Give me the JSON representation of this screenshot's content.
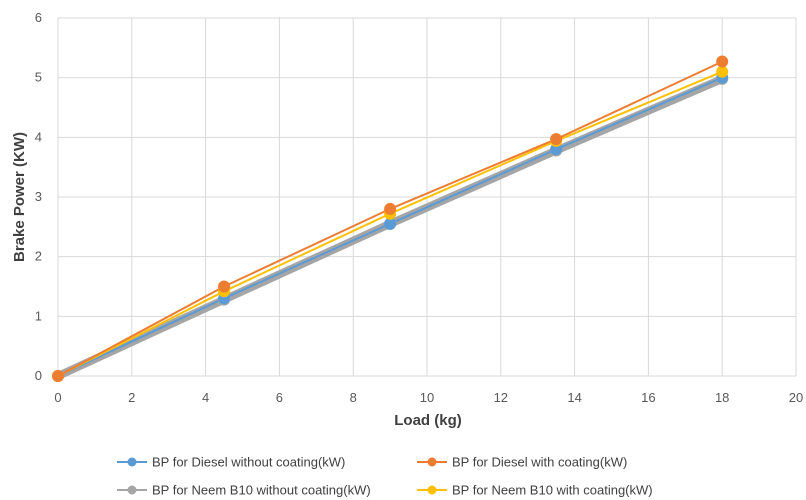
{
  "chart_data": {
    "type": "line",
    "title": "",
    "xlabel": "Load (kg)",
    "ylabel": "Brake Power (KW)",
    "xlim": [
      0,
      20
    ],
    "ylim": [
      0,
      6
    ],
    "xticks": [
      "0",
      "2",
      "4",
      "6",
      "8",
      "10",
      "12",
      "14",
      "16",
      "18",
      "20"
    ],
    "yticks": [
      "0",
      "1",
      "2",
      "3",
      "4",
      "5",
      "6"
    ],
    "grid": true,
    "legend_position": "bottom",
    "x": [
      0,
      4.5,
      9,
      13.5,
      18
    ],
    "series": [
      {
        "name": "BP for Diesel without coating(kW)",
        "color": "#5B9BD5",
        "values": [
          0,
          1.3,
          2.55,
          3.8,
          5.0
        ]
      },
      {
        "name": "BP for Diesel with coating(kW)",
        "color": "#ED7D31",
        "values": [
          0,
          1.5,
          2.8,
          3.97,
          5.27
        ]
      },
      {
        "name": "BP for Neem B10 without coating(kW)",
        "color": "#A5A5A5",
        "values": [
          0,
          1.28,
          2.55,
          3.78,
          4.98
        ]
      },
      {
        "name": "BP for Neem B10 with coating(kW)",
        "color": "#FFC000",
        "values": [
          0,
          1.42,
          2.72,
          3.94,
          5.1
        ]
      }
    ]
  }
}
